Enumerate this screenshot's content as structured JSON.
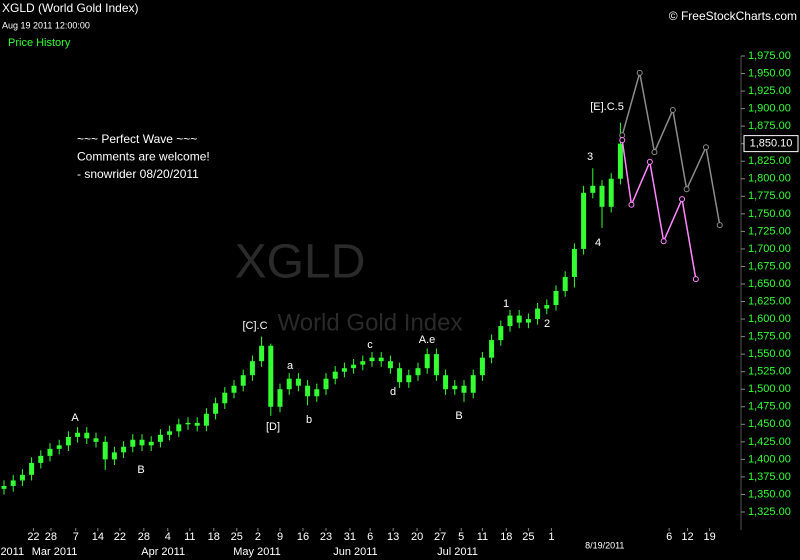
{
  "header": {
    "title": "XGLD (World Gold Index)",
    "timestamp": "Aug 19 2011 12:00:00",
    "panel_label": "Price History",
    "credit": "© FreeStockCharts.com"
  },
  "chart_data": {
    "type": "candlestick",
    "watermark": "XGLD",
    "watermark_subtitle": "World Gold Index",
    "up_color": "#33ff33",
    "x": [
      0,
      1,
      2,
      3,
      4,
      5,
      6,
      7,
      8,
      9,
      10,
      11,
      12,
      13,
      14,
      15,
      16,
      17,
      18,
      19,
      20,
      21,
      22,
      23,
      24,
      25,
      26,
      27,
      28,
      29,
      30,
      31,
      32,
      33,
      34,
      35,
      36,
      37,
      38,
      39,
      40,
      41,
      42,
      43,
      44,
      45,
      46,
      47,
      48,
      49,
      50,
      51,
      52,
      53,
      54,
      55,
      56,
      57,
      58,
      59,
      60,
      61,
      62,
      63,
      64,
      65,
      66,
      67
    ],
    "open": [
      1358,
      1362,
      1370,
      1378,
      1395,
      1405,
      1415,
      1420,
      1432,
      1438,
      1430,
      1425,
      1400,
      1410,
      1418,
      1428,
      1420,
      1425,
      1435,
      1440,
      1450,
      1452,
      1448,
      1465,
      1480,
      1495,
      1505,
      1520,
      1540,
      1562,
      1475,
      1500,
      1515,
      1505,
      1490,
      1500,
      1515,
      1525,
      1530,
      1535,
      1540,
      1545,
      1540,
      1530,
      1510,
      1520,
      1530,
      1550,
      1520,
      1500,
      1505,
      1495,
      1520,
      1545,
      1570,
      1590,
      1605,
      1595,
      1600,
      1615,
      1620,
      1640,
      1660,
      1700,
      1780,
      1790,
      1760,
      1800
    ],
    "high": [
      1370,
      1378,
      1386,
      1403,
      1413,
      1423,
      1428,
      1440,
      1446,
      1446,
      1438,
      1433,
      1418,
      1426,
      1436,
      1436,
      1433,
      1443,
      1448,
      1458,
      1460,
      1460,
      1473,
      1488,
      1503,
      1513,
      1528,
      1548,
      1575,
      1565,
      1508,
      1523,
      1523,
      1513,
      1508,
      1523,
      1533,
      1538,
      1543,
      1548,
      1553,
      1553,
      1548,
      1538,
      1528,
      1538,
      1558,
      1558,
      1528,
      1513,
      1513,
      1528,
      1553,
      1578,
      1598,
      1613,
      1613,
      1608,
      1623,
      1628,
      1648,
      1668,
      1708,
      1790,
      1815,
      1798,
      1808,
      1880
    ],
    "low": [
      1350,
      1354,
      1362,
      1370,
      1387,
      1397,
      1407,
      1412,
      1424,
      1422,
      1417,
      1385,
      1392,
      1402,
      1410,
      1412,
      1412,
      1417,
      1427,
      1432,
      1442,
      1440,
      1440,
      1457,
      1472,
      1487,
      1497,
      1512,
      1532,
      1462,
      1467,
      1492,
      1497,
      1477,
      1482,
      1492,
      1507,
      1517,
      1522,
      1527,
      1532,
      1532,
      1522,
      1502,
      1502,
      1512,
      1522,
      1512,
      1492,
      1492,
      1482,
      1487,
      1512,
      1537,
      1562,
      1582,
      1587,
      1587,
      1592,
      1607,
      1612,
      1632,
      1645,
      1692,
      1772,
      1730,
      1752,
      1792
    ],
    "close": [
      1362,
      1370,
      1378,
      1395,
      1405,
      1415,
      1420,
      1432,
      1438,
      1430,
      1425,
      1400,
      1410,
      1418,
      1428,
      1420,
      1425,
      1435,
      1440,
      1450,
      1452,
      1448,
      1465,
      1480,
      1495,
      1505,
      1520,
      1540,
      1562,
      1475,
      1500,
      1515,
      1505,
      1490,
      1500,
      1515,
      1525,
      1530,
      1535,
      1540,
      1545,
      1540,
      1530,
      1510,
      1520,
      1530,
      1550,
      1520,
      1500,
      1505,
      1495,
      1520,
      1545,
      1570,
      1590,
      1605,
      1595,
      1600,
      1615,
      1620,
      1640,
      1660,
      1700,
      1780,
      1790,
      1760,
      1800,
      1850
    ],
    "projections": [
      {
        "color": "#8c8c8c",
        "x": [
          67.2,
          69.1,
          70.7,
          72.7,
          74.2,
          76.3,
          77.8
        ],
        "values": [
          1862,
          1951,
          1838,
          1898,
          1785,
          1845,
          1734
        ]
      },
      {
        "color": "#ff88ff",
        "x": [
          67.2,
          68.2,
          70.2,
          71.7,
          73.7,
          75.2
        ],
        "values": [
          1855,
          1763,
          1824,
          1711,
          1771,
          1657
        ]
      }
    ],
    "last_price": {
      "value": 1850.1,
      "label": "1,850.10"
    },
    "xlim": [
      0,
      80
    ],
    "ylim": [
      1310,
      2000
    ],
    "xticks": [
      {
        "value": 3.2,
        "label": "22"
      },
      {
        "value": 5.1,
        "label": "28"
      },
      {
        "value": 7.8,
        "label": "7"
      },
      {
        "value": 10.2,
        "label": "14"
      },
      {
        "value": 12.6,
        "label": "22"
      },
      {
        "value": 15.2,
        "label": "28"
      },
      {
        "value": 17.8,
        "label": "4"
      },
      {
        "value": 20.2,
        "label": "11"
      },
      {
        "value": 22.8,
        "label": "18"
      },
      {
        "value": 25.3,
        "label": "25"
      },
      {
        "value": 27.6,
        "label": "2"
      },
      {
        "value": 30,
        "label": "9"
      },
      {
        "value": 32.5,
        "label": "16"
      },
      {
        "value": 35,
        "label": "23"
      },
      {
        "value": 37.6,
        "label": "31"
      },
      {
        "value": 39.8,
        "label": "6"
      },
      {
        "value": 42.3,
        "label": "13"
      },
      {
        "value": 44.9,
        "label": "20"
      },
      {
        "value": 47.4,
        "label": "27"
      },
      {
        "value": 49.7,
        "label": "5"
      },
      {
        "value": 52,
        "label": "11"
      },
      {
        "value": 54.6,
        "label": "18"
      },
      {
        "value": 57,
        "label": "25"
      },
      {
        "value": 59.5,
        "label": "1"
      },
      {
        "value": 72.3,
        "label": "6"
      },
      {
        "value": 74.3,
        "label": "12"
      },
      {
        "value": 76.7,
        "label": "19"
      }
    ],
    "month_ticks": [
      {
        "value": 0.9,
        "label": "2011"
      },
      {
        "value": 5.5,
        "label": "Mar 2011"
      },
      {
        "value": 17.3,
        "label": "Apr 2011"
      },
      {
        "value": 27.5,
        "label": "May 2011"
      },
      {
        "value": 38.2,
        "label": "Jun 2011"
      },
      {
        "value": 49.3,
        "label": "Jul 2011"
      },
      {
        "value": 65.3,
        "label": "8/19/2011"
      }
    ],
    "yticks": [
      {
        "value": 1325,
        "label": "1,325.00"
      },
      {
        "value": 1350,
        "label": "1,350.00"
      },
      {
        "value": 1375,
        "label": "1,375.00"
      },
      {
        "value": 1400,
        "label": "1,400.00"
      },
      {
        "value": 1425,
        "label": "1,425.00"
      },
      {
        "value": 1450,
        "label": "1,450.00"
      },
      {
        "value": 1475,
        "label": "1,475.00"
      },
      {
        "value": 1500,
        "label": "1,500.00"
      },
      {
        "value": 1525,
        "label": "1,525.00"
      },
      {
        "value": 1550,
        "label": "1,550.00"
      },
      {
        "value": 1575,
        "label": "1,575.00"
      },
      {
        "value": 1600,
        "label": "1,600.00"
      },
      {
        "value": 1625,
        "label": "1,625.00"
      },
      {
        "value": 1650,
        "label": "1,650.00"
      },
      {
        "value": 1675,
        "label": "1,675.00"
      },
      {
        "value": 1700,
        "label": "1,700.00"
      },
      {
        "value": 1725,
        "label": "1,725.00"
      },
      {
        "value": 1750,
        "label": "1,750.00"
      },
      {
        "value": 1775,
        "label": "1,775.00"
      },
      {
        "value": 1800,
        "label": "1,800.00"
      },
      {
        "value": 1825,
        "label": "1,825.00"
      },
      {
        "value": 1850,
        "label": "1,850.00"
      },
      {
        "value": 1875,
        "label": "1,875.00"
      },
      {
        "value": 1900,
        "label": "1,900.00"
      },
      {
        "value": 1925,
        "label": "1,925.00"
      },
      {
        "value": 1950,
        "label": "1,950.00"
      },
      {
        "value": 1975,
        "label": "1,975.00"
      }
    ],
    "annotations": [
      "A",
      "B",
      "[C].C",
      "[D]",
      "a",
      "b",
      "c",
      "d",
      "A.e",
      "B",
      "1",
      "2",
      "3",
      "4",
      "[E].C.5"
    ],
    "comment": [
      "~~~ Perfect Wave ~~~",
      "Comments are welcome!",
      "- snowrider  08/20/2011"
    ]
  }
}
